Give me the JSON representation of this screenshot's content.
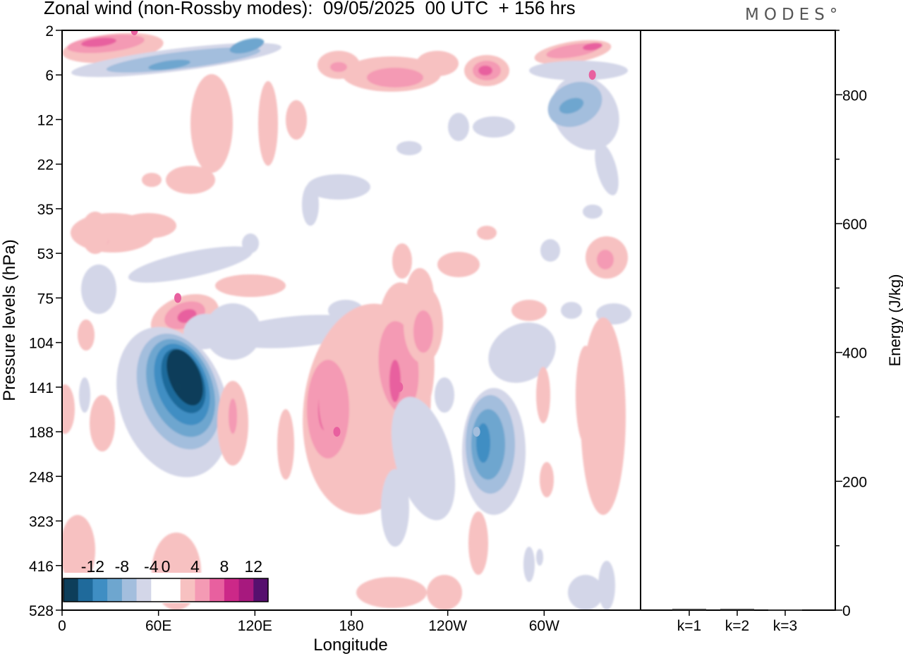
{
  "header": {
    "title": "Zonal wind (non-Rossby modes):  09/05/2025  00 UTC  + 156 hrs",
    "logo": "MODES°"
  },
  "chart_data": [
    {
      "type": "heatmap",
      "title": "Zonal wind (non-Rossby modes):  09/05/2025  00 UTC  + 156 hrs",
      "xlabel": "Longitude",
      "ylabel": "Pressure levels (hPa)",
      "x_ticks": [
        "0",
        "60E",
        "120E",
        "180",
        "120W",
        "60W"
      ],
      "x_tick_values": [
        0,
        60,
        120,
        180,
        240,
        300
      ],
      "xlim": [
        0,
        360
      ],
      "y_ticks": [
        "2",
        "6",
        "12",
        "22",
        "35",
        "53",
        "75",
        "104",
        "141",
        "188",
        "248",
        "323",
        "416",
        "528"
      ],
      "y_scale": "pressure levels (top 2 hPa, bottom 528 hPa)",
      "colorbar": {
        "labels": [
          "-12",
          "-8",
          "-4",
          "0",
          "4",
          "8",
          "12"
        ],
        "levels": [
          -14,
          -12,
          -10,
          -8,
          -6,
          -4,
          -2,
          2,
          4,
          6,
          8,
          10,
          12
        ],
        "colors": [
          "#0d3e5a",
          "#1f6a9b",
          "#3f8ec3",
          "#6ea6cf",
          "#a3bedd",
          "#d3d6e8",
          "#ffffff",
          "#ffffff",
          "#f7c1c1",
          "#f49ab4",
          "#e8609f",
          "#cc2888",
          "#a7197e",
          "#56106e"
        ],
        "position": "bottom-left"
      },
      "features": [
        {
          "lon": 72,
          "level": "141",
          "value": -14,
          "note": "strong easterly core"
        },
        {
          "lon": 72,
          "level": "75",
          "value": 6
        },
        {
          "lon": 171,
          "level": "188",
          "value": 6
        },
        {
          "lon": 210,
          "level": "141",
          "value": 6
        },
        {
          "lon": 258,
          "level": "188",
          "value": -8
        },
        {
          "lon": 45,
          "level": "2",
          "value": 6
        },
        {
          "lon": 330,
          "level": "6",
          "value": 6
        },
        {
          "lon": 320,
          "level": "12",
          "value": -8
        }
      ],
      "grid": false
    },
    {
      "type": "bar",
      "categories": [
        "k=1",
        "k=2",
        "k=3"
      ],
      "values": [
        2,
        2,
        1
      ],
      "ylabel": "Energy (J/kg)",
      "y_ticks": [
        "0",
        "200",
        "400",
        "600",
        "800"
      ],
      "ylim": [
        0,
        900
      ]
    }
  ]
}
